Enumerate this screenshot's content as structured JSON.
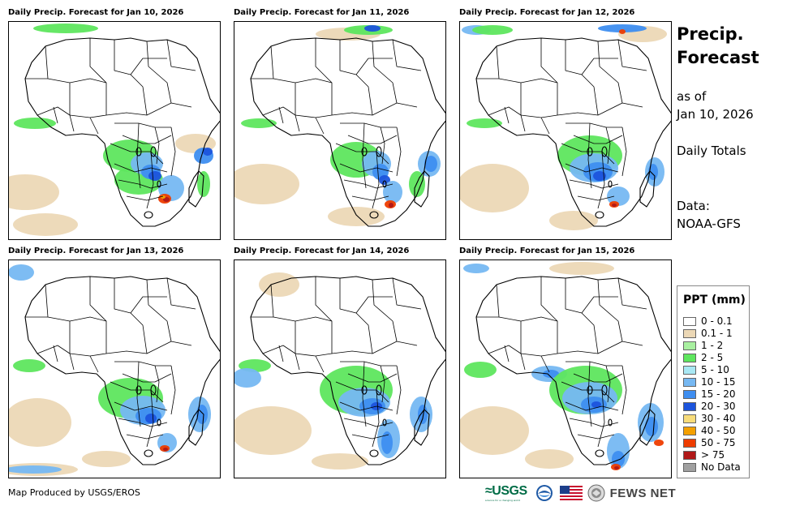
{
  "panels": [
    {
      "title": "Daily Precip. Forecast for Jan 10, 2026"
    },
    {
      "title": "Daily Precip. Forecast for Jan 11, 2026"
    },
    {
      "title": "Daily Precip. Forecast for Jan 12, 2026"
    },
    {
      "title": "Daily Precip. Forecast for Jan 13, 2026"
    },
    {
      "title": "Daily Precip. Forecast for Jan 14, 2026"
    },
    {
      "title": "Daily Precip. Forecast for Jan 15, 2026"
    }
  ],
  "sidebar": {
    "title_line1": "Precip.",
    "title_line2": "Forecast",
    "asof_line1": "as of",
    "asof_line2": "Jan 10, 2026",
    "totals": "Daily Totals",
    "data_line1": "Data:",
    "data_line2": "NOAA-GFS"
  },
  "legend": {
    "title": "PPT (mm)",
    "items": [
      {
        "label": "0 - 0.1",
        "color": "#ffffff"
      },
      {
        "label": "0.1 - 1",
        "color": "#ecd8b6"
      },
      {
        "label": "1 - 2",
        "color": "#a8f0a0"
      },
      {
        "label": "2 - 5",
        "color": "#5ee65e"
      },
      {
        "label": "5 - 10",
        "color": "#a9e8f4"
      },
      {
        "label": "10 - 15",
        "color": "#76b8f2"
      },
      {
        "label": "15 - 20",
        "color": "#3e8ef0"
      },
      {
        "label": "20 - 30",
        "color": "#1c54dc"
      },
      {
        "label": "30 - 40",
        "color": "#f8dc7a"
      },
      {
        "label": "40 - 50",
        "color": "#f4a000"
      },
      {
        "label": "50 - 75",
        "color": "#ee3c00"
      },
      {
        "label": "> 75",
        "color": "#b01818"
      },
      {
        "label": "No Data",
        "color": "#a0a0a0"
      }
    ]
  },
  "footer": {
    "credit": "Map Produced by USGS/EROS",
    "usgs": "≈USGS",
    "usgs_tagline": "science for a changing world",
    "fews": "FEWS NET"
  }
}
